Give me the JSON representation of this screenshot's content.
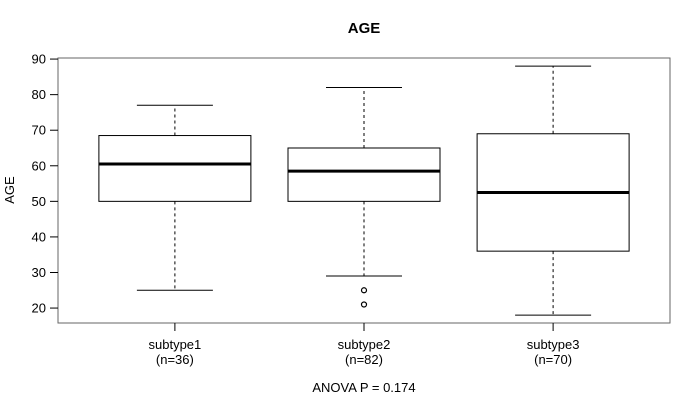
{
  "chart_data": {
    "type": "boxplot",
    "title": "AGE",
    "ylabel": "AGE",
    "xlabel": "",
    "annotation": "ANOVA P = 0.174",
    "y_ticks": [
      20,
      30,
      40,
      50,
      60,
      70,
      80,
      90
    ],
    "ylim": [
      15.8,
      90.3
    ],
    "grid": false,
    "legend": "none",
    "whisker_style": "dashed",
    "groups": [
      {
        "label": "subtype1",
        "n_label": "(n=36)",
        "n": 36,
        "whisker_low": 25,
        "q1": 50,
        "median": 60.5,
        "q3": 68.5,
        "whisker_high": 77,
        "outliers": []
      },
      {
        "label": "subtype2",
        "n_label": "(n=82)",
        "n": 82,
        "whisker_low": 29,
        "q1": 50,
        "median": 58.5,
        "q3": 65,
        "whisker_high": 82,
        "outliers": [
          25,
          21
        ]
      },
      {
        "label": "subtype3",
        "n_label": "(n=70)",
        "n": 70,
        "whisker_low": 18,
        "q1": 36,
        "median": 52.5,
        "q3": 69,
        "whisker_high": 88,
        "outliers": []
      }
    ],
    "colors": {
      "background": "#ffffff",
      "box_fill": "#ffffff",
      "line": "#000000",
      "plot_border": "#666666",
      "text": "#000000"
    }
  }
}
